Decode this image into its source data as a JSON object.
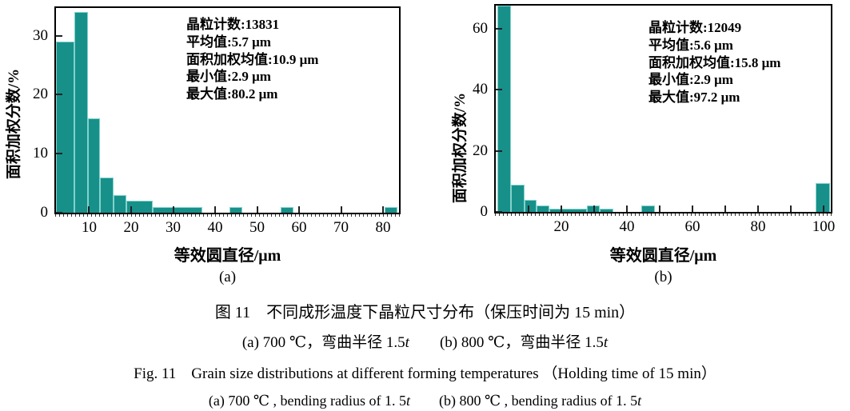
{
  "colors": {
    "bar_fill": "#17908a",
    "bar_edge": "#83d2cb",
    "axis": "#000000",
    "tick": "#222222"
  },
  "chart_data": [
    {
      "type": "bar",
      "id": "a",
      "sublabel": "(a)",
      "xlabel": "等效圆直径/μm",
      "ylabel": "面积加权分数/%",
      "xlim": [
        2.1,
        83.8
      ],
      "ylim": [
        0,
        34.7
      ],
      "grid": false,
      "legend": "none",
      "xticks": [
        {
          "v": 10,
          "label": "10"
        },
        {
          "v": 20,
          "label": "20"
        },
        {
          "v": 30,
          "label": "30"
        },
        {
          "v": 40,
          "label": "40"
        },
        {
          "v": 50,
          "label": "50"
        },
        {
          "v": 60,
          "label": "60"
        },
        {
          "v": 70,
          "label": "70"
        },
        {
          "v": 80,
          "label": "80"
        }
      ],
      "yticks": [
        {
          "v": 0,
          "label": "0"
        },
        {
          "v": 10,
          "label": "10"
        },
        {
          "v": 20,
          "label": "20"
        },
        {
          "v": 30,
          "label": "30"
        }
      ],
      "bars": [
        {
          "x0": 2.1,
          "x1": 6.5,
          "h": 29
        },
        {
          "x0": 6.5,
          "x1": 9.7,
          "h": 34
        },
        {
          "x0": 9.7,
          "x1": 12.5,
          "h": 16
        },
        {
          "x0": 12.5,
          "x1": 15.8,
          "h": 6
        },
        {
          "x0": 15.8,
          "x1": 18.8,
          "h": 3
        },
        {
          "x0": 18.8,
          "x1": 25.1,
          "h": 2
        },
        {
          "x0": 25.1,
          "x1": 37.0,
          "h": 1
        },
        {
          "x0": 43.4,
          "x1": 46.4,
          "h": 1
        },
        {
          "x0": 55.7,
          "x1": 58.7,
          "h": 1
        },
        {
          "x0": 80.4,
          "x1": 83.4,
          "h": 1
        }
      ],
      "annotation_lines": [
        "晶粒计数:13831",
        "平均值:5.7 μm",
        "面积加权均值:10.9 μm",
        "最小值:2.9 μm",
        "最大值:80.2 μm"
      ]
    },
    {
      "type": "bar",
      "id": "b",
      "sublabel": "(b)",
      "xlabel": "等效圆直径/μm",
      "ylabel": "面积加权分数/%",
      "xlim": [
        0,
        102.2
      ],
      "ylim": [
        0,
        67.5
      ],
      "grid": false,
      "legend": "none",
      "xticks": [
        {
          "v": 10,
          "label": ""
        },
        {
          "v": 20,
          "label": "20"
        },
        {
          "v": 30,
          "label": ""
        },
        {
          "v": 40,
          "label": "40"
        },
        {
          "v": 50,
          "label": ""
        },
        {
          "v": 60,
          "label": "60"
        },
        {
          "v": 70,
          "label": ""
        },
        {
          "v": 80,
          "label": "80"
        },
        {
          "v": 90,
          "label": ""
        },
        {
          "v": 100,
          "label": "100"
        }
      ],
      "yticks": [
        {
          "v": 0,
          "label": "0"
        },
        {
          "v": 20,
          "label": "20"
        },
        {
          "v": 40,
          "label": "40"
        },
        {
          "v": 60,
          "label": "60"
        }
      ],
      "bars": [
        {
          "x0": 0.6,
          "x1": 4.7,
          "h": 67.5
        },
        {
          "x0": 4.7,
          "x1": 8.8,
          "h": 9
        },
        {
          "x0": 8.8,
          "x1": 12.4,
          "h": 4
        },
        {
          "x0": 12.4,
          "x1": 16.4,
          "h": 2
        },
        {
          "x0": 16.4,
          "x1": 20.1,
          "h": 1
        },
        {
          "x0": 20.1,
          "x1": 27.8,
          "h": 1
        },
        {
          "x0": 27.8,
          "x1": 31.8,
          "h": 2
        },
        {
          "x0": 31.8,
          "x1": 35.9,
          "h": 1
        },
        {
          "x0": 44.4,
          "x1": 48.5,
          "h": 2
        },
        {
          "x0": 97.6,
          "x1": 102.0,
          "h": 9.5
        }
      ],
      "annotation_lines": [
        "晶粒计数:12049",
        "平均值:5.6 μm",
        "面积加权均值:15.8 μm",
        "最小值:2.9 μm",
        "最大值:97.2 μm"
      ]
    }
  ],
  "captions": {
    "cn_title": "图 11　不同成形温度下晶粒尺寸分布（保压时间为 15 min）",
    "cn_sub": [
      {
        "t": "(a) 700 ℃，弯曲半径 1.5"
      },
      {
        "t": "t",
        "i": true
      },
      {
        "t": "　　(b) 800 ℃，弯曲半径 1.5"
      },
      {
        "t": "t",
        "i": true
      }
    ],
    "en_title": "Fig. 11　Grain size distributions at different forming temperatures （Holding time of 15 min）",
    "en_sub": [
      {
        "t": "(a) 700 ℃ , bending radius of 1. 5"
      },
      {
        "t": "t",
        "i": true
      },
      {
        "t": "　　(b) 800 ℃ , bending radius of 1. 5"
      },
      {
        "t": "t",
        "i": true
      }
    ]
  }
}
